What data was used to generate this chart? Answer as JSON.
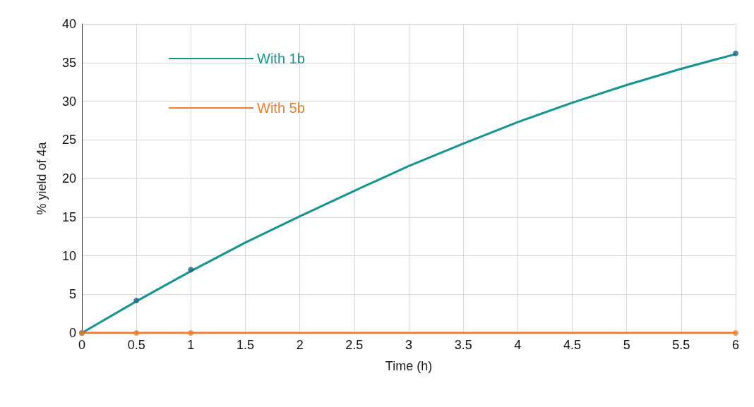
{
  "chart_data": {
    "type": "line",
    "xlabel": "Time (h)",
    "ylabel": "% yield of 4a",
    "xlim": [
      0,
      6
    ],
    "xticks": [
      0,
      0.5,
      1,
      1.5,
      2,
      2.5,
      3,
      3.5,
      4,
      4.5,
      5,
      5.5,
      6
    ],
    "ylim": [
      0,
      40
    ],
    "yticks": [
      0,
      5,
      10,
      15,
      20,
      25,
      30,
      35,
      40
    ],
    "grid": true,
    "legend": "top left",
    "series": [
      {
        "name": "With 1b",
        "color": "#14958f",
        "x": [
          0,
          0.5,
          1,
          1.5,
          2,
          2.5,
          3,
          3.5,
          4,
          4.5,
          5,
          5.5,
          6
        ],
        "values": [
          0,
          4.1,
          8,
          11.7,
          15.1,
          18.4,
          21.6,
          24.5,
          27.3,
          29.8,
          32.1,
          34.2,
          36.1
        ]
      },
      {
        "name": "With 5b",
        "color": "#ed7d31",
        "x": [
          0,
          6
        ],
        "values": [
          0,
          0
        ]
      },
      {
        "type": "scatter",
        "marker": "circle",
        "color": "#1b6580",
        "x": [
          0,
          0.5,
          1,
          6
        ],
        "values": [
          0,
          4.2,
          8.2,
          36.2
        ]
      },
      {
        "type": "scatter",
        "marker": "circle",
        "color": "#ed7d31",
        "x": [
          0,
          0.5,
          1,
          6
        ],
        "values": [
          0,
          0,
          0,
          0
        ]
      }
    ]
  }
}
